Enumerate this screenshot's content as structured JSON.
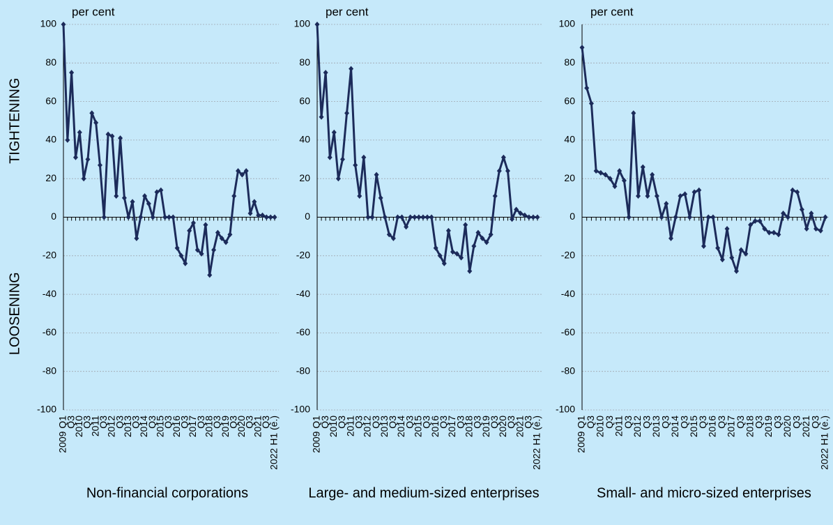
{
  "chart_data": [
    {
      "type": "line",
      "title": "Non-financial corporations",
      "unit": "per cent",
      "annotations": [
        "TIGHTENING",
        "LOOSENING"
      ],
      "categories": [
        "2009 Q1",
        null,
        "Q3",
        null,
        "2010",
        null,
        "Q3",
        null,
        "2011",
        null,
        "Q3",
        null,
        "2012",
        null,
        "Q3",
        null,
        "2013",
        null,
        "Q3",
        null,
        "2014",
        null,
        "Q3",
        null,
        "2015",
        null,
        "Q3",
        null,
        "2016",
        null,
        "Q3",
        null,
        "2017",
        null,
        "Q3",
        null,
        "2018",
        null,
        "Q3",
        null,
        "2019",
        null,
        "Q3",
        null,
        "2020",
        null,
        "Q3",
        null,
        "2021",
        null,
        "Q3",
        null,
        "2022 H1 (e.)"
      ],
      "color": "#1c2b5a",
      "values": [
        100,
        40,
        75,
        31,
        44,
        20,
        30,
        54,
        49,
        27,
        0,
        43,
        42,
        11,
        41,
        10,
        0,
        8,
        -11,
        0,
        11,
        7,
        0,
        13,
        14,
        0,
        0,
        0,
        -16,
        -20,
        -24,
        -7,
        -3,
        -17,
        -19,
        -4,
        -30,
        -17,
        -8,
        -11,
        -13,
        -9,
        11,
        24,
        22,
        24,
        2,
        8,
        1,
        1,
        0,
        0,
        0
      ],
      "ylim": [
        -100,
        100
      ],
      "yticks": [
        -100,
        -80,
        -60,
        -40,
        -20,
        0,
        20,
        40,
        60,
        80,
        100
      ],
      "grid": true
    },
    {
      "type": "line",
      "title": "Large- and medium-sized enterprises",
      "unit": "per cent",
      "categories": [
        "2009 Q1",
        null,
        "Q3",
        null,
        "2010",
        null,
        "Q3",
        null,
        "2011",
        null,
        "Q3",
        null,
        "2012",
        null,
        "Q3",
        null,
        "2013",
        null,
        "Q3",
        null,
        "2014",
        null,
        "Q3",
        null,
        "2015",
        null,
        "Q3",
        null,
        "2016",
        null,
        "Q3",
        null,
        "2017",
        null,
        "Q3",
        null,
        "2018",
        null,
        "Q3",
        null,
        "2019",
        null,
        "Q3",
        null,
        "2020",
        null,
        "Q3",
        null,
        "2021",
        null,
        "Q3",
        null,
        "2022 H1 (e.)"
      ],
      "color": "#1c2b5a",
      "values": [
        100,
        52,
        75,
        31,
        44,
        20,
        30,
        54,
        77,
        27,
        11,
        31,
        0,
        0,
        22,
        10,
        0,
        -9,
        -11,
        0,
        0,
        -5,
        0,
        0,
        0,
        0,
        0,
        0,
        -16,
        -20,
        -24,
        -7,
        -18,
        -19,
        -21,
        -4,
        -28,
        -15,
        -8,
        -11,
        -13,
        -9,
        11,
        24,
        31,
        24,
        -1,
        4,
        2,
        1,
        0,
        0,
        0
      ],
      "ylim": [
        -100,
        100
      ],
      "yticks": [
        -100,
        -80,
        -60,
        -40,
        -20,
        0,
        20,
        40,
        60,
        80,
        100
      ],
      "grid": true
    },
    {
      "type": "line",
      "title": "Small- and micro-sized enterprises",
      "unit": "per cent",
      "categories": [
        "2009 Q1",
        null,
        "Q3",
        null,
        "2010",
        null,
        "Q3",
        null,
        "2011",
        null,
        "Q3",
        null,
        "2012",
        null,
        "Q3",
        null,
        "2013",
        null,
        "Q3",
        null,
        "2014",
        null,
        "Q3",
        null,
        "2015",
        null,
        "Q3",
        null,
        "2016",
        null,
        "Q3",
        null,
        "2017",
        null,
        "Q3",
        null,
        "2018",
        null,
        "Q3",
        null,
        "2019",
        null,
        "Q3",
        null,
        "2020",
        null,
        "Q3",
        null,
        "2021",
        null,
        "Q3",
        null,
        "2022 H1 (e.)"
      ],
      "color": "#1c2b5a",
      "values": [
        88,
        67,
        59,
        24,
        23,
        22,
        20,
        16,
        24,
        19,
        0,
        54,
        11,
        26,
        11,
        22,
        11,
        0,
        7,
        -11,
        0,
        11,
        12,
        0,
        13,
        14,
        -15,
        0,
        0,
        -16,
        -22,
        -6,
        -21,
        -28,
        -17,
        -19,
        -4,
        -2,
        -2,
        -6,
        -8,
        -8,
        -9,
        2,
        0,
        14,
        13,
        4,
        -6,
        2,
        -6,
        -7,
        0
      ],
      "ylim": [
        -100,
        100
      ],
      "yticks": [
        -100,
        -80,
        -60,
        -40,
        -20,
        0,
        20,
        40,
        60,
        80,
        100
      ],
      "grid": true
    }
  ]
}
